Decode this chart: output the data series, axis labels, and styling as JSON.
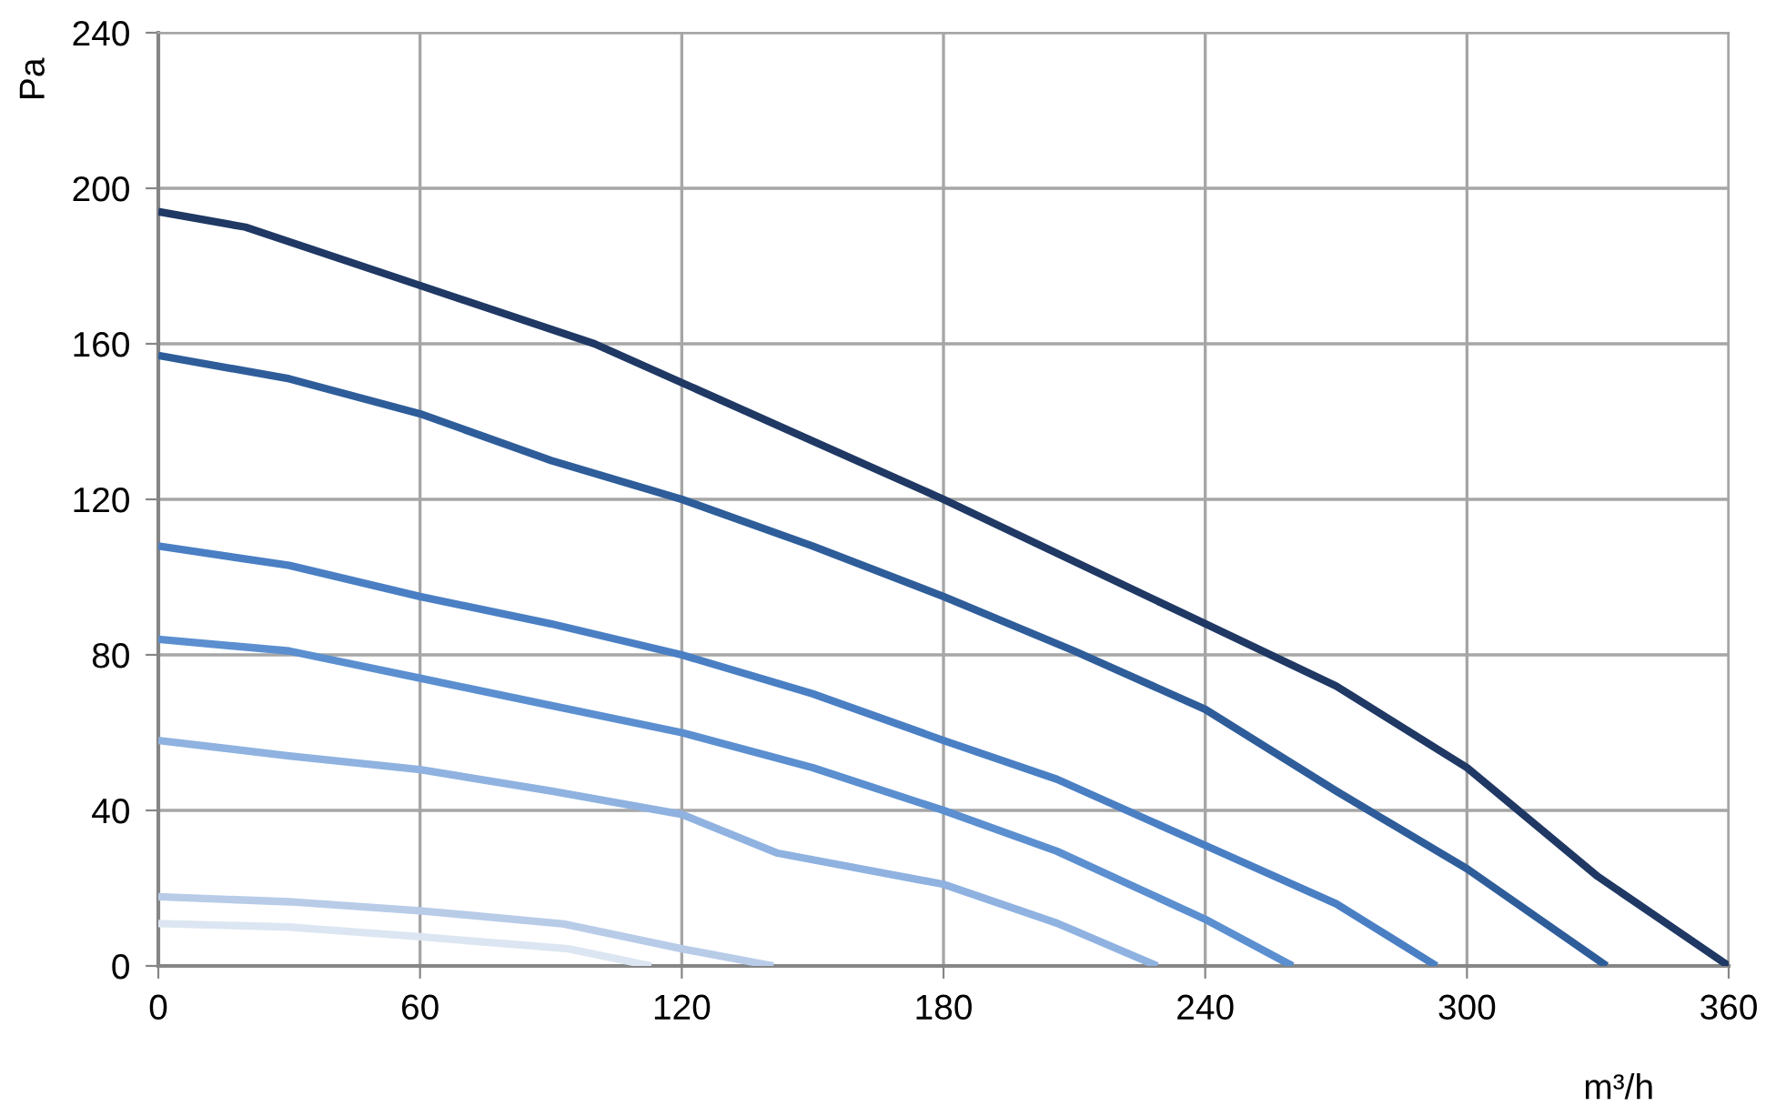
{
  "chart_data": {
    "type": "line",
    "xlabel": "m³/h",
    "ylabel": "Pa",
    "xlim": [
      0,
      360
    ],
    "ylim": [
      0,
      240
    ],
    "xticks": [
      0,
      60,
      120,
      180,
      240,
      300,
      360
    ],
    "yticks": [
      0,
      40,
      80,
      120,
      160,
      200,
      240
    ],
    "grid": true,
    "legend": false,
    "marker": "none",
    "line_style": "solid",
    "series": [
      {
        "color": "#1f3864",
        "x": [
          0,
          20,
          60,
          100,
          120,
          180,
          240,
          270,
          300,
          330,
          360
        ],
        "values": [
          194,
          190,
          175,
          160,
          150,
          120,
          88,
          72,
          51,
          23,
          0
        ]
      },
      {
        "color": "#2e5d9a",
        "x": [
          0,
          30,
          60,
          90,
          120,
          150,
          180,
          210,
          240,
          270,
          300,
          332
        ],
        "values": [
          157,
          151,
          142,
          130,
          120,
          108,
          95,
          81,
          66,
          45,
          25,
          0
        ]
      },
      {
        "color": "#4a7fc4",
        "x": [
          0,
          30,
          60,
          90,
          120,
          150,
          180,
          206,
          240,
          270,
          293
        ],
        "values": [
          108,
          103,
          95,
          88,
          80,
          70,
          58,
          48,
          31,
          16,
          0
        ]
      },
      {
        "color": "#5b8fd0",
        "x": [
          0,
          30,
          60,
          90,
          120,
          150,
          180,
          206,
          240,
          260
        ],
        "values": [
          84,
          81,
          74,
          67,
          60,
          51,
          40,
          29.5,
          12,
          0
        ]
      },
      {
        "color": "#8fb2e0",
        "x": [
          0,
          30,
          60,
          90,
          120,
          142,
          180,
          206,
          229
        ],
        "values": [
          58,
          54,
          50.5,
          45,
          39,
          29,
          21,
          11,
          0
        ]
      },
      {
        "color": "#b8cce8",
        "x": [
          0,
          30,
          60,
          93,
          120,
          141
        ],
        "values": [
          17.8,
          16.5,
          14.2,
          10.8,
          4.4,
          0
        ]
      },
      {
        "color": "#dce6f2",
        "x": [
          0,
          30,
          60,
          94,
          113
        ],
        "values": [
          10.9,
          10,
          7.5,
          4.4,
          0
        ]
      }
    ]
  }
}
